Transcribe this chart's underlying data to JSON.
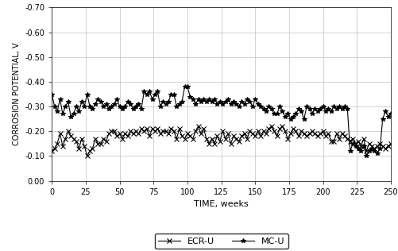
{
  "title": "",
  "xlabel": "TIME, weeks",
  "ylabel": "CORROSION POTENTIAL, V",
  "xlim": [
    0,
    250
  ],
  "ylim": [
    -0.7,
    0.0
  ],
  "yticks": [
    0.0,
    -0.1,
    -0.2,
    -0.3,
    -0.4,
    -0.5,
    -0.6,
    -0.7
  ],
  "xticks": [
    0,
    25,
    50,
    75,
    100,
    125,
    150,
    175,
    200,
    225,
    250
  ],
  "legend_labels": [
    "ECR-U",
    "MC-U"
  ],
  "ecr_x": [
    0,
    2,
    4,
    6,
    8,
    10,
    12,
    14,
    16,
    18,
    20,
    22,
    24,
    26,
    28,
    30,
    32,
    34,
    36,
    38,
    40,
    42,
    44,
    46,
    48,
    50,
    52,
    54,
    56,
    58,
    60,
    62,
    64,
    66,
    68,
    70,
    72,
    74,
    76,
    78,
    80,
    82,
    84,
    86,
    88,
    90,
    92,
    94,
    96,
    98,
    100,
    102,
    104,
    106,
    108,
    110,
    112,
    114,
    116,
    118,
    120,
    122,
    124,
    126,
    128,
    130,
    132,
    134,
    136,
    138,
    140,
    142,
    144,
    146,
    148,
    150,
    152,
    154,
    156,
    158,
    160,
    162,
    164,
    166,
    168,
    170,
    172,
    174,
    176,
    178,
    180,
    182,
    184,
    186,
    188,
    190,
    192,
    194,
    196,
    198,
    200,
    202,
    204,
    206,
    208,
    210,
    212,
    214,
    216,
    218,
    220,
    222,
    224,
    226,
    228,
    230,
    232,
    234,
    236,
    238,
    240,
    242,
    244,
    246,
    248,
    250
  ],
  "ecr_y": [
    -0.12,
    -0.13,
    -0.15,
    -0.19,
    -0.14,
    -0.17,
    -0.2,
    -0.18,
    -0.17,
    -0.16,
    -0.13,
    -0.17,
    -0.14,
    -0.1,
    -0.12,
    -0.13,
    -0.17,
    -0.15,
    -0.15,
    -0.17,
    -0.16,
    -0.19,
    -0.2,
    -0.2,
    -0.18,
    -0.19,
    -0.17,
    -0.19,
    -0.18,
    -0.2,
    -0.19,
    -0.2,
    -0.19,
    -0.21,
    -0.2,
    -0.21,
    -0.18,
    -0.21,
    -0.2,
    -0.21,
    -0.19,
    -0.2,
    -0.2,
    -0.19,
    -0.21,
    -0.2,
    -0.17,
    -0.21,
    -0.18,
    -0.17,
    -0.19,
    -0.18,
    -0.17,
    -0.2,
    -0.22,
    -0.19,
    -0.21,
    -0.17,
    -0.15,
    -0.17,
    -0.15,
    -0.18,
    -0.16,
    -0.2,
    -0.17,
    -0.19,
    -0.15,
    -0.18,
    -0.17,
    -0.16,
    -0.18,
    -0.19,
    -0.17,
    -0.2,
    -0.19,
    -0.18,
    -0.2,
    -0.18,
    -0.2,
    -0.19,
    -0.21,
    -0.22,
    -0.2,
    -0.18,
    -0.21,
    -0.22,
    -0.2,
    -0.17,
    -0.19,
    -0.21,
    -0.2,
    -0.18,
    -0.2,
    -0.19,
    -0.18,
    -0.19,
    -0.2,
    -0.19,
    -0.18,
    -0.19,
    -0.2,
    -0.18,
    -0.19,
    -0.16,
    -0.16,
    -0.19,
    -0.17,
    -0.19,
    -0.18,
    -0.17,
    -0.16,
    -0.17,
    -0.15,
    -0.16,
    -0.14,
    -0.17,
    -0.12,
    -0.15,
    -0.14,
    -0.13,
    -0.14,
    -0.15,
    -0.14,
    -0.13,
    -0.14,
    -0.15
  ],
  "mc_x": [
    0,
    2,
    4,
    6,
    8,
    10,
    12,
    14,
    16,
    18,
    20,
    22,
    24,
    26,
    28,
    30,
    32,
    34,
    36,
    38,
    40,
    42,
    44,
    46,
    48,
    50,
    52,
    54,
    56,
    58,
    60,
    62,
    64,
    66,
    68,
    70,
    72,
    74,
    76,
    78,
    80,
    82,
    84,
    86,
    88,
    90,
    92,
    94,
    96,
    98,
    100,
    102,
    104,
    106,
    108,
    110,
    112,
    114,
    116,
    118,
    120,
    122,
    124,
    126,
    128,
    130,
    132,
    134,
    136,
    138,
    140,
    142,
    144,
    146,
    148,
    150,
    152,
    154,
    156,
    158,
    160,
    162,
    164,
    166,
    168,
    170,
    172,
    174,
    176,
    178,
    180,
    182,
    184,
    186,
    188,
    190,
    192,
    194,
    196,
    198,
    200,
    202,
    204,
    206,
    208,
    210,
    212,
    214,
    216,
    218,
    220,
    222,
    224,
    226,
    228,
    230,
    232,
    234,
    236,
    238,
    240,
    242,
    244,
    246,
    248,
    250
  ],
  "mc_y": [
    -0.35,
    -0.3,
    -0.28,
    -0.33,
    -0.27,
    -0.3,
    -0.32,
    -0.26,
    -0.27,
    -0.3,
    -0.28,
    -0.32,
    -0.3,
    -0.35,
    -0.3,
    -0.29,
    -0.31,
    -0.33,
    -0.32,
    -0.3,
    -0.31,
    -0.29,
    -0.3,
    -0.31,
    -0.33,
    -0.3,
    -0.29,
    -0.3,
    -0.32,
    -0.31,
    -0.29,
    -0.3,
    -0.31,
    -0.29,
    -0.36,
    -0.35,
    -0.36,
    -0.33,
    -0.35,
    -0.36,
    -0.3,
    -0.32,
    -0.31,
    -0.32,
    -0.35,
    -0.35,
    -0.3,
    -0.31,
    -0.32,
    -0.38,
    -0.38,
    -0.34,
    -0.33,
    -0.31,
    -0.33,
    -0.32,
    -0.33,
    -0.32,
    -0.33,
    -0.32,
    -0.33,
    -0.31,
    -0.32,
    -0.31,
    -0.32,
    -0.33,
    -0.31,
    -0.32,
    -0.31,
    -0.3,
    -0.32,
    -0.31,
    -0.33,
    -0.32,
    -0.3,
    -0.33,
    -0.31,
    -0.3,
    -0.29,
    -0.28,
    -0.3,
    -0.29,
    -0.27,
    -0.27,
    -0.3,
    -0.28,
    -0.26,
    -0.27,
    -0.25,
    -0.26,
    -0.27,
    -0.29,
    -0.28,
    -0.25,
    -0.3,
    -0.29,
    -0.27,
    -0.29,
    -0.28,
    -0.29,
    -0.3,
    -0.28,
    -0.29,
    -0.28,
    -0.3,
    -0.29,
    -0.3,
    -0.29,
    -0.3,
    -0.29,
    -0.12,
    -0.15,
    -0.14,
    -0.13,
    -0.12,
    -0.14,
    -0.1,
    -0.12,
    -0.13,
    -0.12,
    -0.11,
    -0.13,
    -0.25,
    -0.28,
    -0.26,
    -0.27
  ],
  "line_color": "#000000",
  "marker_ecr": "x",
  "marker_mc": "*",
  "marker_size": 4,
  "line_width": 0.8,
  "grid_color": "#c0c0c0",
  "background_color": "#ffffff",
  "legend_box_color": "#ffffff"
}
